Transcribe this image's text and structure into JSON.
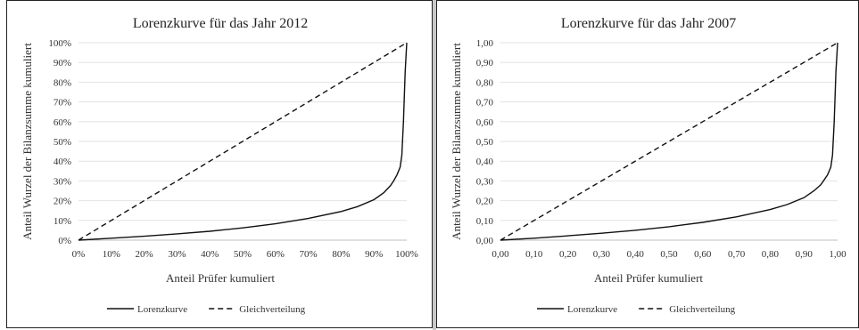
{
  "chart_data": [
    {
      "type": "line",
      "title": "Lorenzkurve für das Jahr 2012",
      "xlabel": "Anteil Prüfer kumuliert",
      "ylabel": "Anteil Wurzel der Bilanzsumme kumuliert",
      "xticks": [
        "0%",
        "10%",
        "20%",
        "30%",
        "40%",
        "50%",
        "60%",
        "70%",
        "80%",
        "90%",
        "100%"
      ],
      "yticks": [
        "0%",
        "10%",
        "20%",
        "30%",
        "40%",
        "50%",
        "60%",
        "70%",
        "80%",
        "90%",
        "100%"
      ],
      "xlim": [
        0,
        1
      ],
      "ylim": [
        0,
        1
      ],
      "grid": "horizontal",
      "legend": "bottom",
      "series": [
        {
          "name": "Lorenzkurve",
          "style": "solid",
          "x": [
            0,
            0.1,
            0.2,
            0.3,
            0.4,
            0.5,
            0.6,
            0.7,
            0.8,
            0.85,
            0.9,
            0.93,
            0.95,
            0.96,
            0.97,
            0.98,
            0.985,
            0.99,
            0.995,
            1.0
          ],
          "y": [
            0,
            0.01,
            0.02,
            0.032,
            0.045,
            0.062,
            0.083,
            0.11,
            0.145,
            0.17,
            0.205,
            0.24,
            0.275,
            0.3,
            0.33,
            0.37,
            0.43,
            0.6,
            0.85,
            1.0
          ]
        },
        {
          "name": "Gleichverteilung",
          "style": "dashed",
          "x": [
            0,
            1
          ],
          "y": [
            0,
            1
          ]
        }
      ]
    },
    {
      "type": "line",
      "title": "Lorenzkurve für das Jahr 2007",
      "xlabel": "Anteil Prüfer kumuliert",
      "ylabel": "Anteil Wurzel der Bilanzsumme kumuliert",
      "xticks": [
        "0,00",
        "0,10",
        "0,20",
        "0,30",
        "0,40",
        "0,50",
        "0,60",
        "0,70",
        "0,80",
        "0,90",
        "1,00"
      ],
      "yticks": [
        "0,00",
        "0,10",
        "0,20",
        "0,30",
        "0,40",
        "0,50",
        "0,60",
        "0,70",
        "0,80",
        "0,90",
        "1,00"
      ],
      "xlim": [
        0,
        1
      ],
      "ylim": [
        0,
        1
      ],
      "grid": "horizontal",
      "legend": "bottom",
      "series": [
        {
          "name": "Lorenzkurve",
          "style": "solid",
          "x": [
            0,
            0.1,
            0.2,
            0.3,
            0.4,
            0.5,
            0.6,
            0.7,
            0.8,
            0.85,
            0.9,
            0.93,
            0.95,
            0.96,
            0.97,
            0.98,
            0.985,
            0.99,
            0.995,
            1.0
          ],
          "y": [
            0,
            0.01,
            0.022,
            0.035,
            0.05,
            0.068,
            0.09,
            0.118,
            0.155,
            0.18,
            0.215,
            0.25,
            0.28,
            0.305,
            0.33,
            0.37,
            0.43,
            0.6,
            0.85,
            1.0
          ]
        },
        {
          "name": "Gleichverteilung",
          "style": "dashed",
          "x": [
            0,
            1
          ],
          "y": [
            0,
            1
          ]
        }
      ]
    }
  ]
}
